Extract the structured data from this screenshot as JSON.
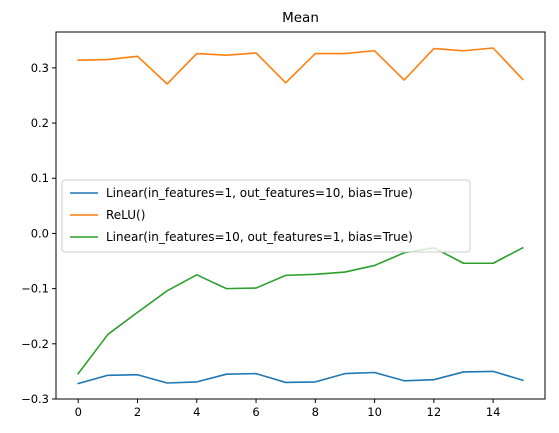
{
  "chart_data": {
    "type": "line",
    "title": "Mean",
    "xlabel": "",
    "ylabel": "",
    "xlim": [
      -0.75,
      15.75
    ],
    "ylim": [
      -0.3,
      0.365
    ],
    "x_ticks": [
      0,
      2,
      4,
      6,
      8,
      10,
      12,
      14
    ],
    "y_ticks": [
      -0.3,
      -0.2,
      -0.1,
      0.0,
      0.1,
      0.2,
      0.3
    ],
    "x_tick_labels": [
      "0",
      "2",
      "4",
      "6",
      "8",
      "10",
      "12",
      "14"
    ],
    "y_tick_labels": [
      "−0.3",
      "−0.2",
      "−0.1",
      "0.0",
      "0.1",
      "0.2",
      "0.3"
    ],
    "grid": false,
    "legend_position": "center-left",
    "x": [
      0,
      1,
      2,
      3,
      4,
      5,
      6,
      7,
      8,
      9,
      10,
      11,
      12,
      13,
      14,
      15
    ],
    "series": [
      {
        "name": "Linear(in_features=1, out_features=10, bias=True)",
        "color": "#1f77b4",
        "values": [
          -0.272,
          -0.257,
          -0.256,
          -0.271,
          -0.269,
          -0.255,
          -0.254,
          -0.27,
          -0.269,
          -0.254,
          -0.252,
          -0.267,
          -0.265,
          -0.251,
          -0.25,
          -0.266
        ]
      },
      {
        "name": "ReLU()",
        "color": "#ff7f0e",
        "values": [
          0.314,
          0.315,
          0.321,
          0.271,
          0.326,
          0.323,
          0.327,
          0.273,
          0.326,
          0.326,
          0.331,
          0.278,
          0.335,
          0.331,
          0.336,
          0.279
        ]
      },
      {
        "name": "Linear(in_features=10, out_features=1, bias=True)",
        "color": "#2ca02c",
        "values": [
          -0.254,
          -0.183,
          -0.143,
          -0.104,
          -0.075,
          -0.1,
          -0.099,
          -0.076,
          -0.074,
          -0.07,
          -0.058,
          -0.035,
          -0.026,
          -0.054,
          -0.054,
          -0.026
        ]
      }
    ]
  }
}
